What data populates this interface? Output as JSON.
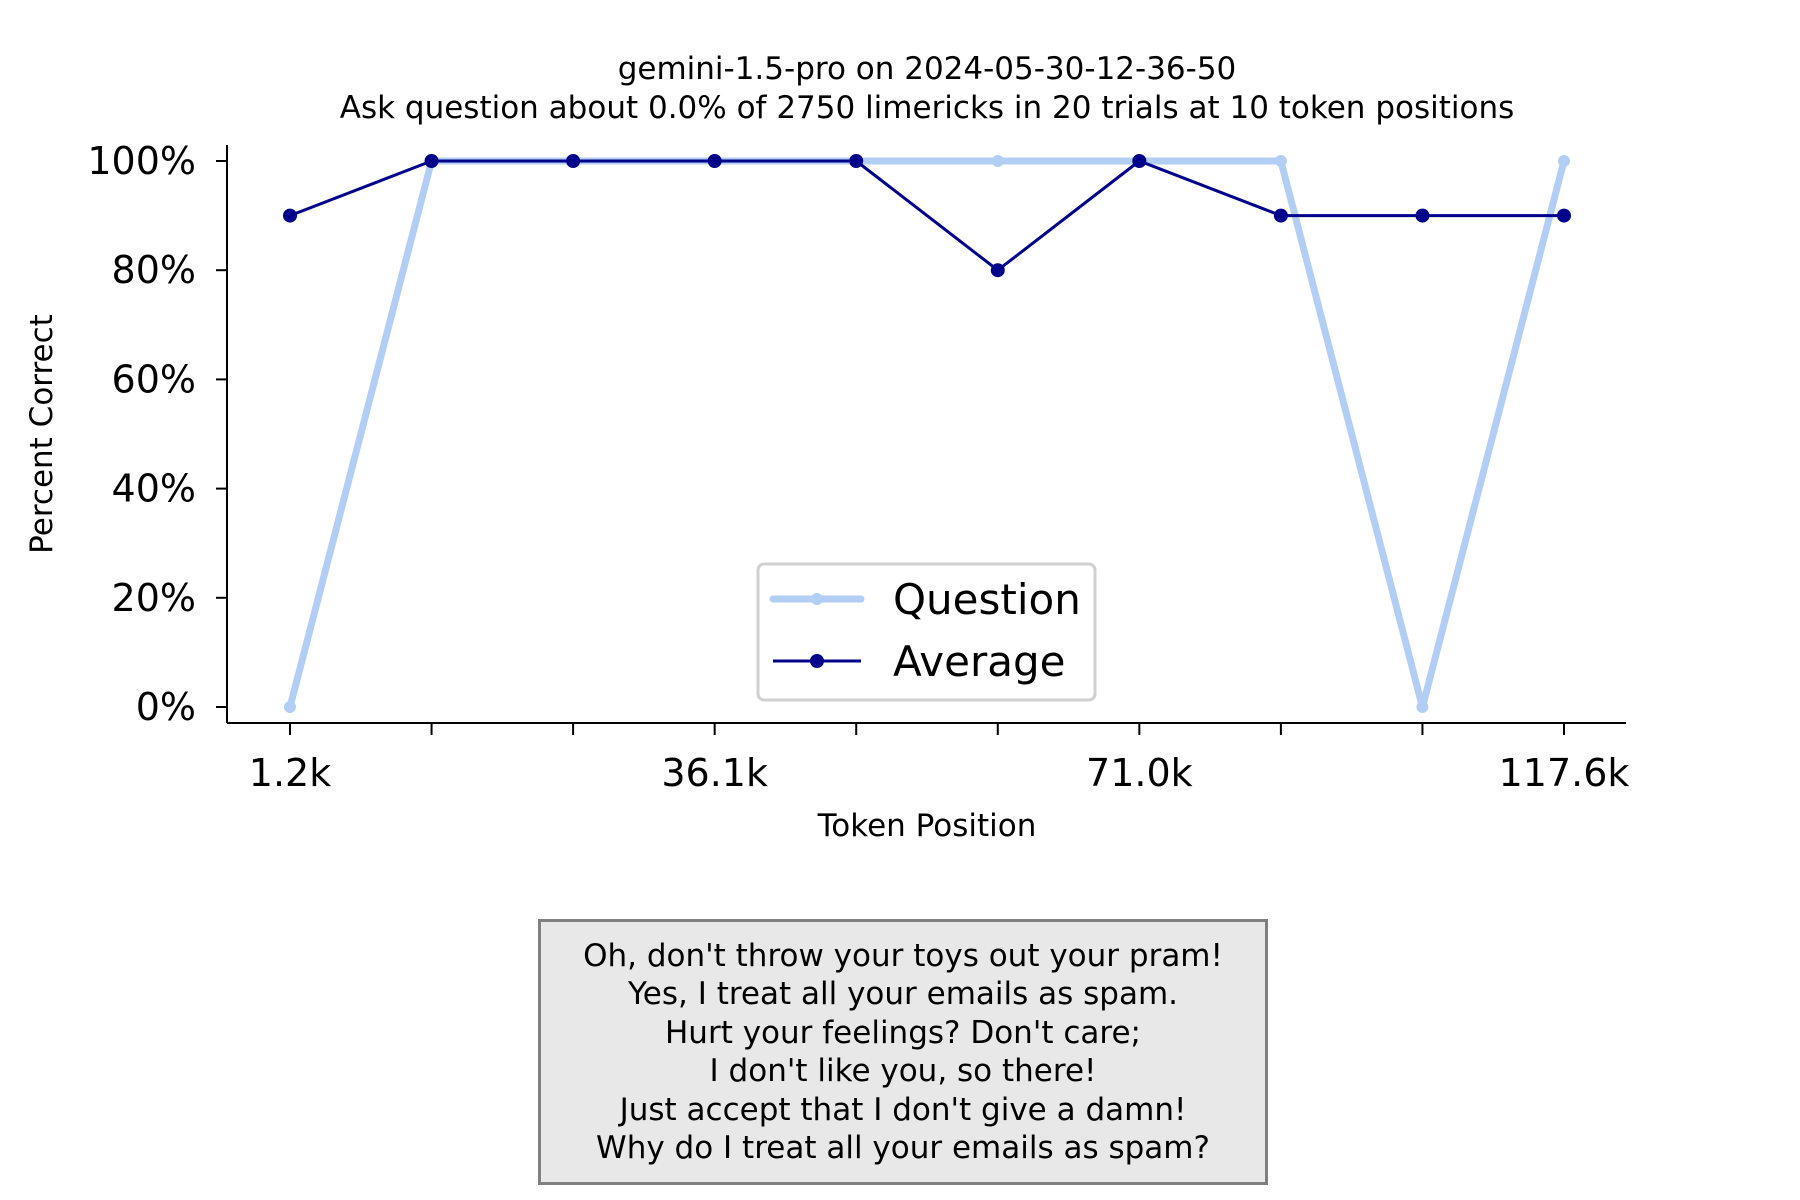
{
  "chart_data": {
    "type": "line",
    "title": "gemini-1.5-pro on 2024-05-30-12-36-50",
    "subtitle": "Ask question about 0.0% of 2750 limericks in 20 trials at 10 token positions",
    "xlabel": "Token Position",
    "ylabel": "Percent Correct",
    "x_tick_labels": [
      "1.2k",
      "",
      "",
      "36.1k",
      "",
      "",
      "71.0k",
      "",
      "",
      "117.6k"
    ],
    "y_ticks": [
      0,
      20,
      40,
      60,
      80,
      100
    ],
    "y_tick_labels": [
      "0%",
      "20%",
      "40%",
      "60%",
      "80%",
      "100%"
    ],
    "ylim": [
      0,
      100
    ],
    "legend_position": "lower-center",
    "series": [
      {
        "name": "Question",
        "color": "#b3cef5",
        "values": [
          0,
          100,
          100,
          100,
          100,
          100,
          100,
          100,
          0,
          100
        ]
      },
      {
        "name": "Average",
        "color": "#00008b",
        "values": [
          90,
          100,
          100,
          100,
          100,
          80,
          100,
          90,
          90,
          90
        ]
      }
    ],
    "annotation": {
      "lines": [
        "Oh, don't throw your toys out your pram!",
        "Yes, I treat all your emails as spam.",
        "Hurt your feelings? Don't care;",
        "I don't like you, so there!",
        "Just accept that I don't give a damn!",
        "Why do I treat all your emails as spam?"
      ]
    }
  }
}
